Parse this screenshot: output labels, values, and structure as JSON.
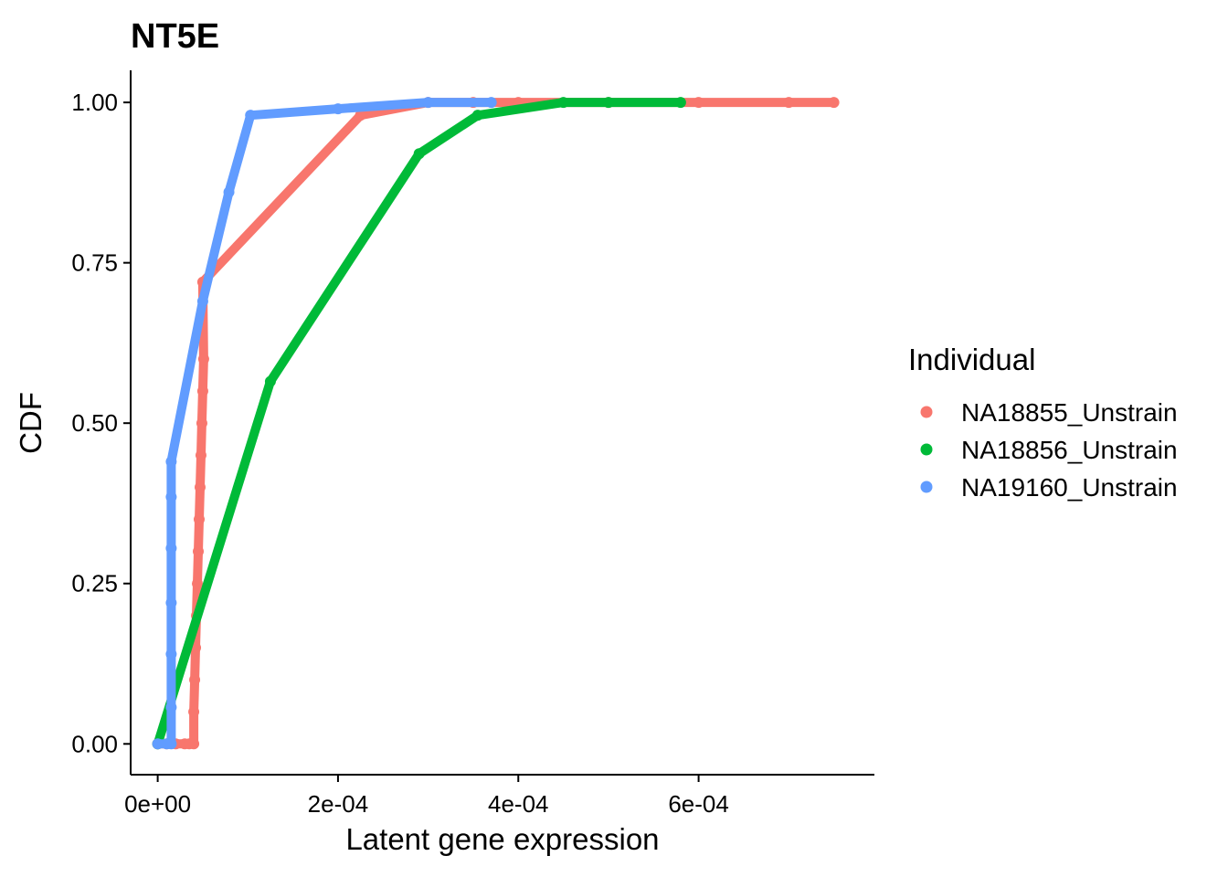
{
  "chart_data": {
    "type": "line",
    "title": "NT5E",
    "xlabel": "Latent gene expression",
    "ylabel": "CDF",
    "xlim": [
      -3e-05,
      0.000795
    ],
    "ylim": [
      -0.048,
      1.05
    ],
    "x_ticks": [
      {
        "value": 0,
        "label": "0e+00"
      },
      {
        "value": 0.0002,
        "label": "2e-04"
      },
      {
        "value": 0.0004,
        "label": "4e-04"
      },
      {
        "value": 0.0006,
        "label": "6e-04"
      }
    ],
    "y_ticks": [
      {
        "value": 0,
        "label": "0.00"
      },
      {
        "value": 0.25,
        "label": "0.25"
      },
      {
        "value": 0.5,
        "label": "0.50"
      },
      {
        "value": 0.75,
        "label": "0.75"
      },
      {
        "value": 1,
        "label": "1.00"
      }
    ],
    "grid": false,
    "legend": {
      "title": "Individual",
      "position": "right"
    },
    "series": [
      {
        "name": "NA18855_Unstrain",
        "color": "#F8766D",
        "x": [
          0,
          1e-05,
          2e-05,
          3e-05,
          3.5e-05,
          4e-05,
          4e-05,
          4.1e-05,
          4.2e-05,
          4.3e-05,
          4.4e-05,
          4.5e-05,
          4.6e-05,
          4.7e-05,
          4.8e-05,
          4.9e-05,
          5e-05,
          5.1e-05,
          5e-05,
          0.000225,
          0.0003,
          0.00035,
          0.0004,
          0.0005,
          0.0006,
          0.0007,
          0.00075
        ],
        "y": [
          0,
          0,
          0,
          0,
          0,
          0,
          0.05,
          0.1,
          0.15,
          0.2,
          0.25,
          0.3,
          0.35,
          0.4,
          0.45,
          0.5,
          0.55,
          0.6,
          0.72,
          0.98,
          1,
          1,
          1,
          1,
          1,
          1,
          1
        ]
      },
      {
        "name": "NA18856_Unstrain",
        "color": "#00BA38",
        "x": [
          0,
          0.000125,
          0.00029,
          0.000355,
          0.00045,
          0.0005,
          0.00058
        ],
        "y": [
          0,
          0.565,
          0.92,
          0.98,
          1,
          1,
          1
        ]
      },
      {
        "name": "NA19160_Unstrain",
        "color": "#619CFF",
        "x": [
          0,
          1e-05,
          1.5e-05,
          1.5e-05,
          1.5e-05,
          1.5e-05,
          1.5e-05,
          1.5e-05,
          1.5e-05,
          5e-05,
          7.9e-05,
          0.000103,
          0.0002,
          0.0003,
          0.00037
        ],
        "y": [
          0,
          0,
          0,
          0.057,
          0.14,
          0.22,
          0.305,
          0.385,
          0.44,
          0.69,
          0.86,
          0.98,
          0.99,
          1,
          1
        ]
      }
    ]
  }
}
